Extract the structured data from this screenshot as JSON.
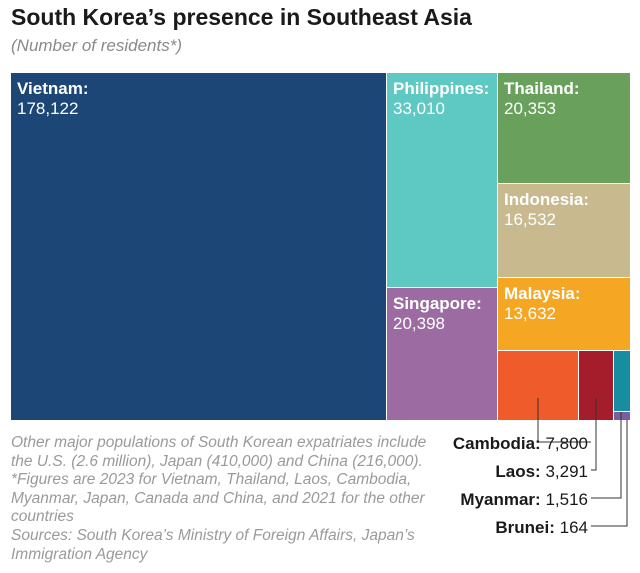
{
  "title": "South Korea’s presence in Southeast Asia",
  "subtitle": "(Number of residents*)",
  "note": "Other major populations of South Korean expatriates include the U.S. (2.6 million), Japan (410,000) and China (216,000). *Figures are 2023 for Vietnam, Thailand, Laos, Cambodia, Myanmar, Japan, Canada and China, and 2021 for the other countries",
  "sources": "Sources: South Korea’s Ministry of Foreign Affairs, Japan’s Immigration Agency",
  "chart_data": {
    "type": "treemap",
    "title": "South Korea’s presence in Southeast Asia",
    "subtitle": "(Number of residents*)",
    "items": [
      {
        "name": "Vietnam",
        "label": "Vietnam:",
        "value": 178122,
        "display": "178,122",
        "color": "#1b4676"
      },
      {
        "name": "Philippines",
        "label": "Philippines:",
        "value": 33010,
        "display": "33,010",
        "color": "#5ec8c2"
      },
      {
        "name": "Thailand",
        "label": "Thailand:",
        "value": 20353,
        "display": "20,353",
        "color": "#69a15c"
      },
      {
        "name": "Indonesia",
        "label": "Indonesia:",
        "value": 16532,
        "display": "16,532",
        "color": "#c8b98f"
      },
      {
        "name": "Singapore",
        "label": "Singapore:",
        "value": 20398,
        "display": "20,398",
        "color": "#9b6ba2"
      },
      {
        "name": "Malaysia",
        "label": "Malaysia:",
        "value": 13632,
        "display": "13,632",
        "color": "#f5a623"
      },
      {
        "name": "Cambodia",
        "label": "Cambodia:",
        "value": 7800,
        "display": "7,800",
        "color": "#ef5b2a"
      },
      {
        "name": "Laos",
        "label": "Laos:",
        "value": 3291,
        "display": "3,291",
        "color": "#a51d2b"
      },
      {
        "name": "Myanmar",
        "label": "Myanmar:",
        "value": 1516,
        "display": "1,516",
        "color": "#168da0"
      },
      {
        "name": "Brunei",
        "label": "Brunei:",
        "value": 164,
        "display": "164",
        "color": "#7a5f9e"
      }
    ]
  }
}
